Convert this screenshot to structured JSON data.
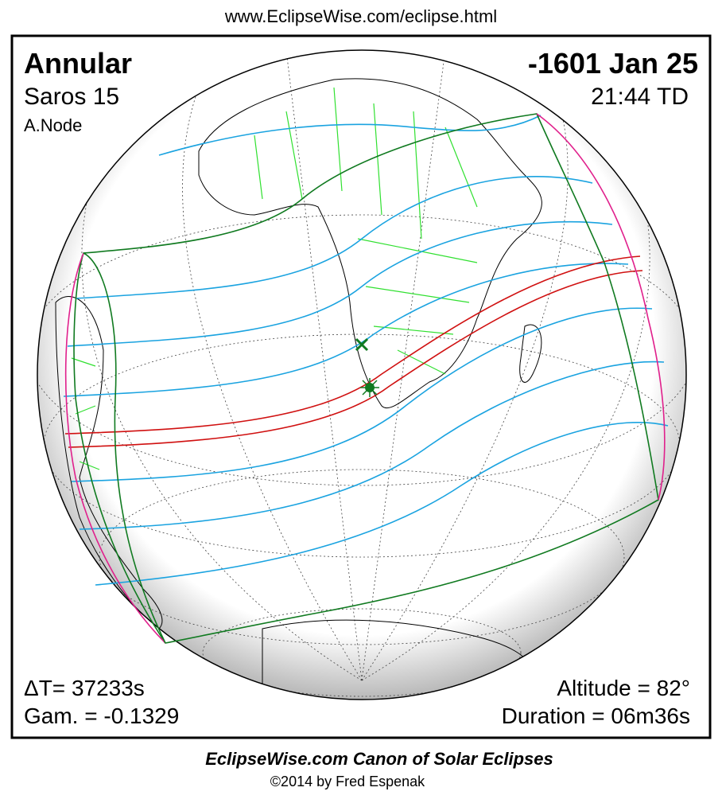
{
  "header": {
    "url": "www.EclipseWise.com/eclipse.html"
  },
  "panel": {
    "type": "Annular",
    "saros": "Saros  15",
    "node": "A.Node",
    "date": "-1601 Jan 25",
    "time": "21:44 TD",
    "delta_t": "ΔT=  37233s",
    "gamma": "Gam. = -0.1329",
    "altitude": "Altitude = 82°",
    "duration": "Duration = 06m36s"
  },
  "footer": {
    "title": "EclipseWise.com Canon of Solar Eclipses",
    "copyright": "©2014 by Fred Espenak"
  }
}
